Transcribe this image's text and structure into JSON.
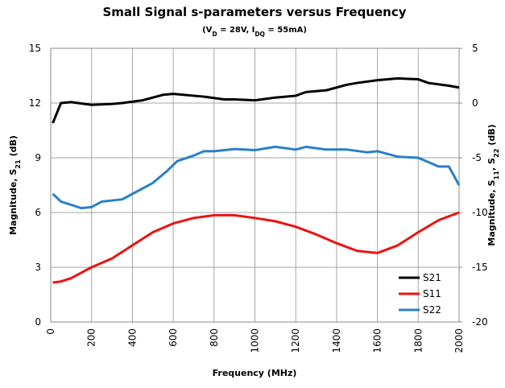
{
  "chart_data": {
    "type": "line",
    "title": "Small Signal s-parameters versus Frequency",
    "subtitle": [
      {
        "text": "(V"
      },
      {
        "text": "D",
        "sub": true
      },
      {
        "text": " = 28V, I"
      },
      {
        "text": "DQ",
        "sub": true
      },
      {
        "text": " = 55mA)"
      }
    ],
    "xlabel": "Frequency (MHz)",
    "ylabel": [
      {
        "text": "Magnitude, S"
      },
      {
        "text": "21",
        "sub": true
      },
      {
        "text": " (dB)"
      }
    ],
    "y2label": [
      {
        "text": "Magnitude, S"
      },
      {
        "text": "11",
        "sub": true
      },
      {
        "text": ", S"
      },
      {
        "text": "22",
        "sub": true
      },
      {
        "text": " (dB)"
      }
    ],
    "xlim": [
      0,
      2000
    ],
    "xticks": [
      0,
      200,
      400,
      600,
      800,
      1000,
      1200,
      1400,
      1600,
      1800,
      2000
    ],
    "ylim": [
      0,
      15
    ],
    "yticks": [
      0,
      3,
      6,
      9,
      12,
      15
    ],
    "y2lim": [
      -20,
      5
    ],
    "y2ticks": [
      -20,
      -15,
      -10,
      -5,
      0,
      5
    ],
    "grid": true,
    "legend": "lower right",
    "series": [
      {
        "name": "S21",
        "color": "#000000",
        "x": [
          10,
          50,
          100,
          200,
          300,
          350,
          450,
          550,
          600,
          650,
          700,
          750,
          850,
          900,
          1000,
          1100,
          1200,
          1250,
          1350,
          1450,
          1500,
          1600,
          1700,
          1800,
          1850,
          1950,
          2000
        ],
        "values": [
          10.9,
          12.0,
          12.05,
          11.9,
          11.95,
          12.0,
          12.15,
          12.45,
          12.5,
          12.45,
          12.4,
          12.35,
          12.2,
          12.2,
          12.15,
          12.3,
          12.4,
          12.6,
          12.7,
          13.0,
          13.1,
          13.25,
          13.35,
          13.3,
          13.1,
          12.95,
          12.85
        ]
      },
      {
        "name": "S11",
        "color": "#ee1111",
        "axis": "y2",
        "x": [
          10,
          50,
          100,
          200,
          300,
          400,
          500,
          600,
          700,
          800,
          900,
          1000,
          1100,
          1200,
          1300,
          1400,
          1500,
          1600,
          1700,
          1800,
          1900,
          2000
        ],
        "values": [
          -16.4,
          -16.3,
          -16.0,
          -15.0,
          -14.2,
          -13.0,
          -11.8,
          -11.0,
          -10.5,
          -10.25,
          -10.25,
          -10.5,
          -10.8,
          -11.3,
          -12.0,
          -12.8,
          -13.5,
          -13.7,
          -13.0,
          -11.8,
          -10.7,
          -10.0
        ]
      },
      {
        "name": "S22",
        "color": "#2a7fc9",
        "axis": "y2",
        "x": [
          10,
          50,
          100,
          150,
          200,
          250,
          350,
          400,
          500,
          570,
          620,
          700,
          750,
          800,
          900,
          1000,
          1100,
          1200,
          1250,
          1350,
          1450,
          1550,
          1600,
          1700,
          1800,
          1900,
          1950,
          2000
        ],
        "values": [
          -8.3,
          -9.0,
          -9.3,
          -9.6,
          -9.5,
          -9.0,
          -8.8,
          -8.3,
          -7.3,
          -6.2,
          -5.3,
          -4.8,
          -4.4,
          -4.4,
          -4.2,
          -4.3,
          -4.0,
          -4.25,
          -4.0,
          -4.25,
          -4.25,
          -4.5,
          -4.4,
          -4.9,
          -5.0,
          -5.8,
          -5.8,
          -7.5
        ]
      }
    ]
  }
}
